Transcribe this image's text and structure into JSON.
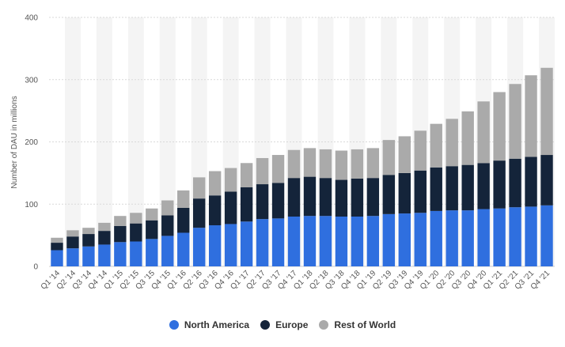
{
  "chart_data": {
    "type": "bar",
    "stacked": true,
    "title": "",
    "xlabel": "",
    "ylabel": "Number of DAU in millions",
    "ylim": [
      0,
      400
    ],
    "yticks": [
      0,
      100,
      200,
      300,
      400
    ],
    "grid": true,
    "legend_position": "bottom",
    "categories": [
      "Q1 '14",
      "Q2 '14",
      "Q3 '14",
      "Q4 '14",
      "Q1 '15",
      "Q2 '15",
      "Q3 '15",
      "Q4 '15",
      "Q1 '16",
      "Q2 '16",
      "Q3 '16",
      "Q4 '16",
      "Q1 '17",
      "Q2 '17",
      "Q3 '17",
      "Q4 '17",
      "Q1 '18",
      "Q2 '18",
      "Q3 '18",
      "Q4 '18",
      "Q1 '19",
      "Q2 '19",
      "Q3 '19",
      "Q4 '19",
      "Q1 '20",
      "Q2 '20",
      "Q3 '20",
      "Q4 '20",
      "Q1 '21",
      "Q2 '21",
      "Q3 '21",
      "Q4 '21"
    ],
    "series": [
      {
        "name": "North America",
        "color": "#2f6fdf",
        "values": [
          26,
          29,
          32,
          35,
          39,
          40,
          44,
          49,
          54,
          62,
          66,
          68,
          72,
          76,
          77,
          80,
          81,
          81,
          80,
          80,
          81,
          84,
          85,
          86,
          89,
          90,
          90,
          92,
          93,
          95,
          96,
          98
        ]
      },
      {
        "name": "Europe",
        "color": "#14243a",
        "values": [
          12,
          19,
          20,
          22,
          26,
          29,
          30,
          33,
          40,
          47,
          48,
          52,
          55,
          56,
          57,
          62,
          63,
          61,
          59,
          61,
          61,
          63,
          65,
          68,
          70,
          71,
          73,
          74,
          77,
          78,
          80,
          81
        ]
      },
      {
        "name": "Rest of World",
        "color": "#aaaaaa",
        "values": [
          8,
          10,
          10,
          13,
          16,
          17,
          19,
          24,
          28,
          34,
          39,
          38,
          39,
          42,
          45,
          45,
          46,
          46,
          47,
          47,
          48,
          56,
          59,
          64,
          70,
          76,
          86,
          99,
          110,
          120,
          131,
          140
        ]
      }
    ]
  }
}
